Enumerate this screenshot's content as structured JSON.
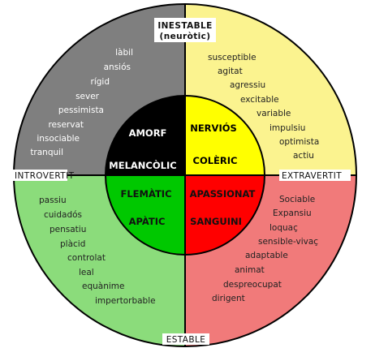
{
  "axes": {
    "top": "INESTABLE",
    "top_sub": "(neuròtic)",
    "left": "INTROVERTIT",
    "right": "EXTRAVERTIT",
    "bottom": "ESTABLE"
  },
  "colors": {
    "outer_tl": "#7f7f7f",
    "outer_tr": "#fbf38f",
    "outer_bl": "#8bdc7b",
    "outer_br": "#f17a7a",
    "inner_tl": "#000000",
    "inner_tr": "#ffff00",
    "inner_bl": "#00c800",
    "inner_br": "#ff0000"
  },
  "quadrants": {
    "tl": [
      "làbil",
      "ansiós",
      "rígid",
      "sever",
      "pessimista",
      "reservat",
      "insociable",
      "tranquil"
    ],
    "tr": [
      "susceptible",
      "agitat",
      "agressiu",
      "excitable",
      "variable",
      "impulsiu",
      "optimista",
      "actiu"
    ],
    "bl": [
      "passiu",
      "cuidadós",
      "pensatiu",
      "plàcid",
      "controlat",
      "leal",
      "equànime",
      "impertorbable"
    ],
    "br": [
      "Sociable",
      "Expansiu",
      "loquaç",
      "sensible-vivaç",
      "adaptable",
      "animat",
      "despreocupat",
      "dirigent"
    ]
  },
  "core": {
    "tl_top": "AMORF",
    "tl_bottom": "MELANCÒLIC",
    "tr_top": "NERVIÓS",
    "tr_bottom": "COLÈRIC",
    "bl_top": "FLEMÀTIC",
    "bl_bottom": "APÀTIC",
    "br_top": "APASSIONAT",
    "br_bottom": "SANGUINI"
  }
}
